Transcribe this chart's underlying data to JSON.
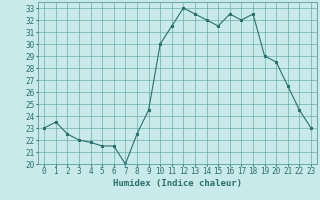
{
  "x": [
    0,
    1,
    2,
    3,
    4,
    5,
    6,
    7,
    8,
    9,
    10,
    11,
    12,
    13,
    14,
    15,
    16,
    17,
    18,
    19,
    20,
    21,
    22,
    23
  ],
  "y": [
    23,
    23.5,
    22.5,
    22,
    21.8,
    21.5,
    21.5,
    20,
    22.5,
    24.5,
    30,
    31.5,
    33,
    32.5,
    32,
    31.5,
    32.5,
    32,
    32.5,
    29,
    28.5,
    26.5,
    24.5,
    23
  ],
  "line_color": "#2d6e6e",
  "marker": "*",
  "marker_size": 2,
  "bg_color": "#c8eaea",
  "grid_color": "#5a9e9e",
  "xlabel": "Humidex (Indice chaleur)",
  "xlim": [
    -0.5,
    23.5
  ],
  "ylim": [
    20,
    33.5
  ],
  "yticks": [
    20,
    21,
    22,
    23,
    24,
    25,
    26,
    27,
    28,
    29,
    30,
    31,
    32,
    33
  ],
  "xticks": [
    0,
    1,
    2,
    3,
    4,
    5,
    6,
    7,
    8,
    9,
    10,
    11,
    12,
    13,
    14,
    15,
    16,
    17,
    18,
    19,
    20,
    21,
    22,
    23
  ],
  "tick_fontsize": 5.5,
  "label_fontsize": 6.5
}
